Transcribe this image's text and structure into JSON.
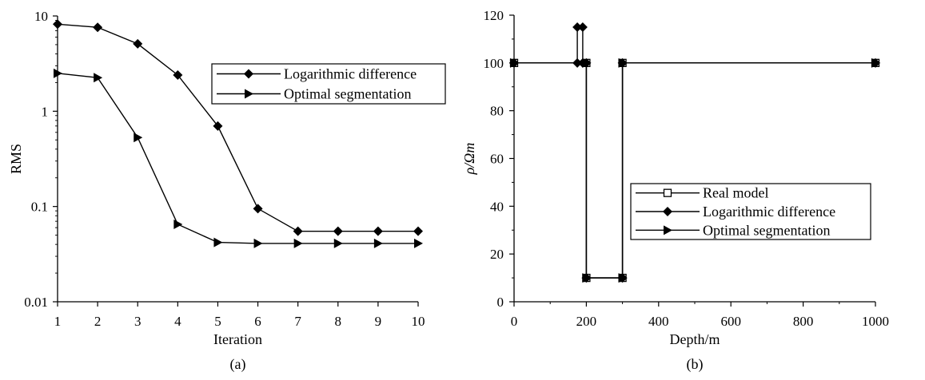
{
  "chart_data": [
    {
      "type": "line",
      "caption": "(a)",
      "xlabel": "Iteration",
      "ylabel": "RMS",
      "yscale": "log",
      "xlim": [
        1,
        10
      ],
      "ylim": [
        0.01,
        10
      ],
      "x_ticks": [
        "1",
        "2",
        "3",
        "4",
        "5",
        "6",
        "7",
        "8",
        "9",
        "10"
      ],
      "y_ticks": [
        "0.01",
        "0.1",
        "1",
        "10"
      ],
      "legend_position": "upper-right",
      "series": [
        {
          "name": "Logarithmic difference",
          "marker": "diamond",
          "x": [
            1,
            2,
            3,
            4,
            5,
            6,
            7,
            8,
            9,
            10
          ],
          "values": [
            8.2,
            7.6,
            5.1,
            2.4,
            0.7,
            0.095,
            0.055,
            0.055,
            0.055,
            0.055
          ]
        },
        {
          "name": "Optimal segmentation",
          "marker": "triangle-right",
          "x": [
            1,
            2,
            3,
            4,
            5,
            6,
            7,
            8,
            9,
            10
          ],
          "values": [
            2.5,
            2.25,
            0.53,
            0.065,
            0.042,
            0.041,
            0.041,
            0.041,
            0.041,
            0.041
          ]
        }
      ]
    },
    {
      "type": "line",
      "caption": "(b)",
      "xlabel": "Depth/m",
      "ylabel": "ρ/Ωm",
      "xlim": [
        0,
        1000
      ],
      "ylim": [
        0,
        120
      ],
      "x_ticks": [
        "0",
        "200",
        "400",
        "600",
        "800",
        "1000"
      ],
      "y_ticks": [
        "0",
        "20",
        "40",
        "60",
        "80",
        "100",
        "120"
      ],
      "legend_position": "center-right",
      "series": [
        {
          "name": "Real model",
          "marker": "open-square",
          "x": [
            0,
            200,
            200,
            300,
            300,
            1000
          ],
          "values": [
            100,
            100,
            10,
            10,
            100,
            100
          ]
        },
        {
          "name": "Logarithmic difference",
          "marker": "diamond",
          "x": [
            0,
            175,
            175,
            190,
            190,
            200,
            200,
            300,
            300,
            1000
          ],
          "values": [
            100,
            100,
            115,
            115,
            100,
            100,
            10,
            10,
            100,
            100
          ]
        },
        {
          "name": "Optimal segmentation",
          "marker": "triangle-right",
          "x": [
            0,
            200,
            200,
            300,
            300,
            1000
          ],
          "values": [
            100,
            100,
            10,
            10,
            100,
            100
          ]
        }
      ]
    }
  ]
}
